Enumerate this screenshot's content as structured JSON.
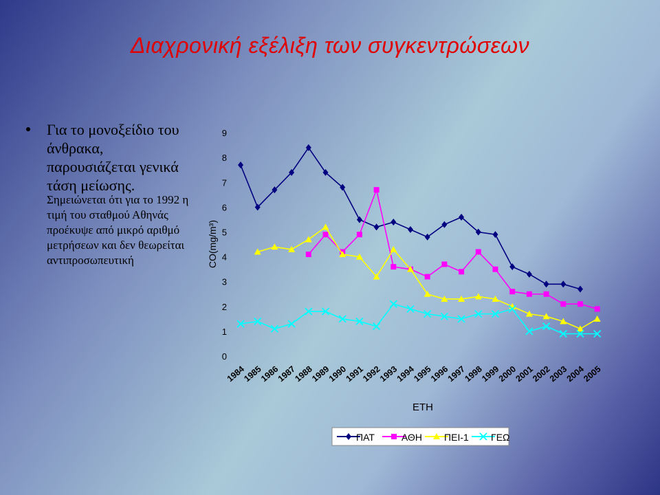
{
  "slide": {
    "title": "Διαχρονική εξέλιξη των συγκεντρώσεων",
    "bullet_main": "Για το μονοξείδιο του άνθρακα, παρουσιάζεται γενικά τάση μείωσης.",
    "bullet_note": "Σημειώνεται ότι για το 1992 η τιμή του σταθμού Αθηνάς προέκυψε από μικρό αριθμό μετρήσεων και δεν θεωρείται αντιπροσωπευτική"
  },
  "chart_data": {
    "type": "line",
    "xlabel": "ΕΤΗ",
    "ylabel": "CO(mg/m³)",
    "ylim": [
      0,
      9
    ],
    "yticks": [
      "0",
      "1",
      "2",
      "3",
      "4",
      "5",
      "6",
      "7",
      "8",
      "9"
    ],
    "categories": [
      "1984",
      "1985",
      "1986",
      "1987",
      "1988",
      "1989",
      "1990",
      "1991",
      "1992",
      "1993",
      "1994",
      "1995",
      "1996",
      "1997",
      "1998",
      "1999",
      "2000",
      "2001",
      "2002",
      "2003",
      "2004",
      "2005"
    ],
    "legend_position": "bottom",
    "grid": false,
    "series": [
      {
        "name": "ΠΑΤ",
        "color": "#000080",
        "marker": "diamond",
        "values": [
          7.7,
          6.0,
          6.7,
          7.4,
          8.4,
          7.4,
          6.8,
          5.5,
          5.2,
          5.4,
          5.1,
          4.8,
          5.3,
          5.6,
          5.0,
          4.9,
          3.6,
          3.3,
          2.9,
          2.9,
          2.7,
          null
        ]
      },
      {
        "name": "ΑΘΗ",
        "color": "#ff00ff",
        "marker": "square",
        "values": [
          null,
          null,
          null,
          null,
          4.1,
          4.9,
          4.2,
          4.9,
          6.7,
          3.6,
          3.5,
          3.2,
          3.7,
          3.4,
          4.2,
          3.5,
          2.6,
          2.5,
          2.5,
          2.1,
          2.1,
          1.9
        ]
      },
      {
        "name": "ΠΕΙ-1",
        "color": "#ffff00",
        "marker": "triangle",
        "values": [
          null,
          4.2,
          4.4,
          4.3,
          4.7,
          5.2,
          4.1,
          4.0,
          3.2,
          4.3,
          3.5,
          2.5,
          2.3,
          2.3,
          2.4,
          2.3,
          2.0,
          1.7,
          1.6,
          1.4,
          1.1,
          1.5
        ]
      },
      {
        "name": "ΓΕΩ",
        "color": "#00ffff",
        "marker": "x",
        "values": [
          1.3,
          1.4,
          1.1,
          1.3,
          1.8,
          1.8,
          1.5,
          1.4,
          1.2,
          2.1,
          1.9,
          1.7,
          1.6,
          1.5,
          1.7,
          1.7,
          1.9,
          1.0,
          1.2,
          0.9,
          0.9,
          0.9
        ]
      }
    ]
  }
}
